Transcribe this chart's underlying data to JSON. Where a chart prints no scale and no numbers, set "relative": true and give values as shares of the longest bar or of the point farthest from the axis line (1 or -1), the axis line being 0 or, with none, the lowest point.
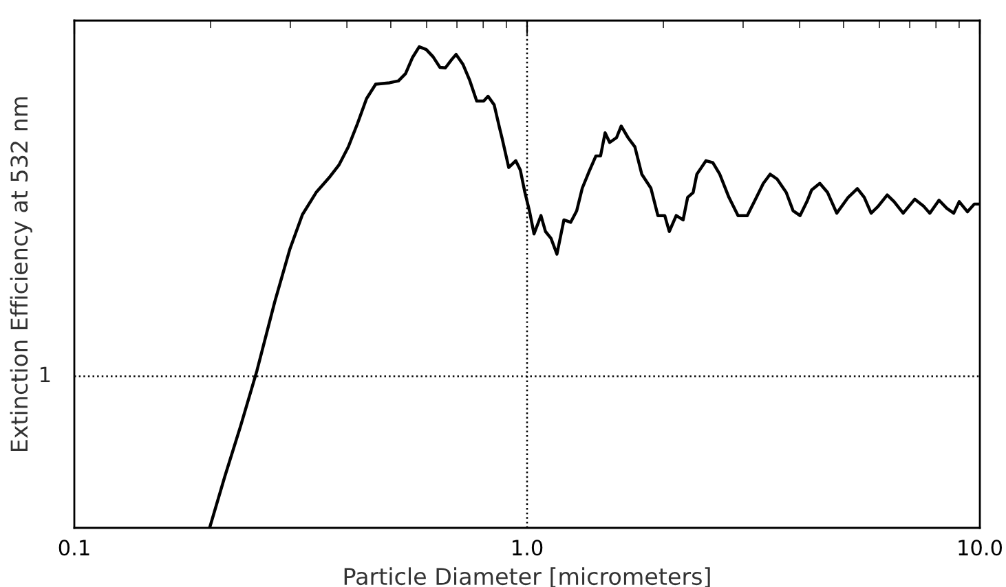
{
  "chart_data": {
    "type": "line",
    "xlabel": "Particle Diameter [micrometers]",
    "ylabel": "Extinction Efficiency at 532 nm",
    "relative": true,
    "log": "x",
    "grid": false,
    "legend": false,
    "marker": "none",
    "line_style": "solid",
    "xlim": [
      0.1,
      10
    ],
    "xticks": [
      0.1,
      {
        "value": 1,
        "label": "1.0"
      },
      {
        "value": 10,
        "label": "10.0"
      }
    ],
    "annotations": [
      "1"
    ],
    "ref_lines": [
      {
        "axis": "y",
        "value": 0.315,
        "label": null,
        "line_style": "dotted",
        "color": "#000000"
      },
      {
        "axis": "x",
        "value": 1,
        "label": null,
        "line_style": "dotted",
        "color": "#000000"
      }
    ],
    "series": [
      {
        "color": "#000000",
        "x": [
          0.199,
          0.215,
          0.233,
          0.253,
          0.277,
          0.299,
          0.319,
          0.342,
          0.367,
          0.384,
          0.403,
          0.422,
          0.442,
          0.463,
          0.497,
          0.52,
          0.539,
          0.558,
          0.578,
          0.599,
          0.62,
          0.642,
          0.66,
          0.681,
          0.697,
          0.722,
          0.747,
          0.774,
          0.802,
          0.82,
          0.846,
          0.87,
          0.88,
          0.911,
          0.944,
          0.966,
          0.989,
          1.012,
          1.036,
          1.073,
          1.098,
          1.129,
          1.164,
          1.206,
          1.248,
          1.287,
          1.324,
          1.37,
          1.419,
          1.453,
          1.487,
          1.522,
          1.576,
          1.614,
          1.671,
          1.73,
          1.792,
          1.877,
          1.945,
          2.014,
          2.061,
          2.135,
          2.211,
          2.263,
          2.327,
          2.371,
          2.484,
          2.572,
          2.664,
          2.791,
          2.924,
          3.064,
          3.211,
          3.325,
          3.443,
          3.566,
          3.736,
          3.869,
          4.007,
          4.15,
          4.249,
          4.431,
          4.61,
          4.83,
          5.12,
          5.364,
          5.555,
          5.753,
          5.958,
          6.243,
          6.465,
          6.771,
          7.18,
          7.522,
          7.754,
          8.124,
          8.455,
          8.756,
          9.004,
          9.391,
          9.723,
          10.0
        ],
        "values": [
          0.0,
          0.107,
          0.212,
          0.326,
          0.469,
          0.578,
          0.651,
          0.697,
          0.73,
          0.754,
          0.792,
          0.84,
          0.892,
          0.922,
          0.925,
          0.929,
          0.944,
          0.977,
          1.0,
          0.994,
          0.979,
          0.957,
          0.956,
          0.973,
          0.984,
          0.963,
          0.93,
          0.887,
          0.887,
          0.897,
          0.879,
          0.83,
          0.811,
          0.749,
          0.763,
          0.744,
          0.697,
          0.659,
          0.611,
          0.649,
          0.616,
          0.602,
          0.569,
          0.64,
          0.635,
          0.659,
          0.706,
          0.74,
          0.773,
          0.773,
          0.821,
          0.801,
          0.811,
          0.835,
          0.811,
          0.792,
          0.735,
          0.706,
          0.649,
          0.649,
          0.616,
          0.649,
          0.64,
          0.687,
          0.697,
          0.735,
          0.763,
          0.759,
          0.735,
          0.687,
          0.649,
          0.649,
          0.687,
          0.716,
          0.735,
          0.725,
          0.697,
          0.659,
          0.649,
          0.678,
          0.702,
          0.716,
          0.697,
          0.654,
          0.687,
          0.705,
          0.687,
          0.654,
          0.668,
          0.692,
          0.678,
          0.654,
          0.683,
          0.668,
          0.654,
          0.681,
          0.664,
          0.654,
          0.678,
          0.657,
          0.673,
          0.673
        ]
      }
    ]
  }
}
